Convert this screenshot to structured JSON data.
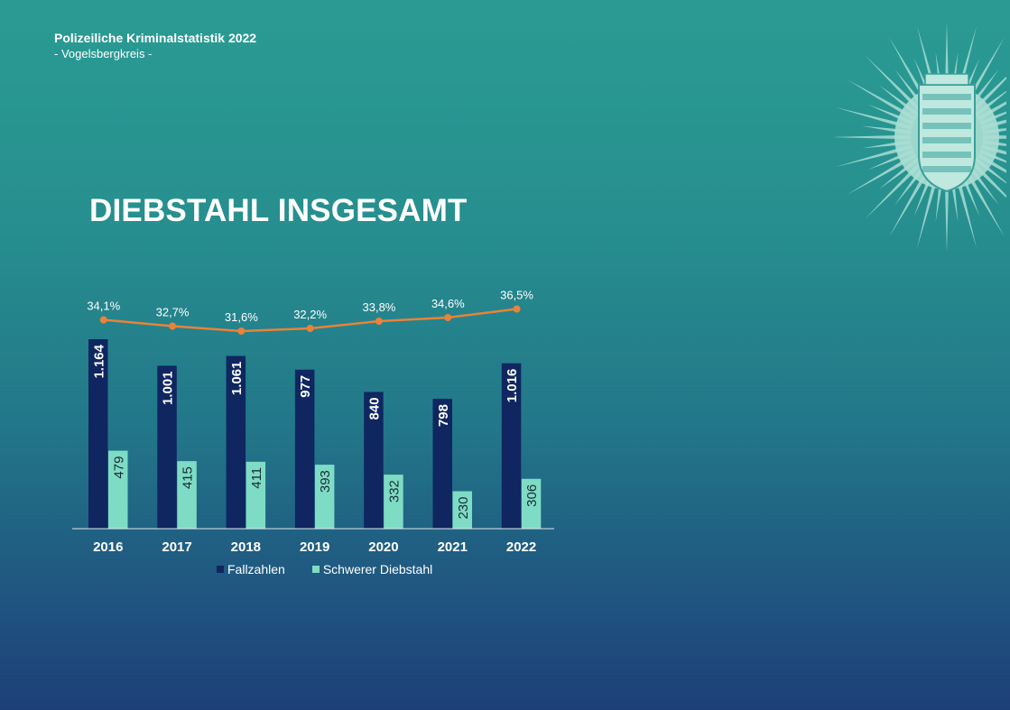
{
  "header": {
    "title": "Polizeiliche Kriminalstatistik 2022",
    "subtitle": "- Vogelsbergkreis -"
  },
  "page_title": "DIEBSTAHL INSGESAMT",
  "colors": {
    "fallzahlen": "#0f2660",
    "schwerer": "#7fdcc4",
    "line": "#e8833a",
    "axis": "#dfe8ee",
    "emblem": "#a9ded4"
  },
  "icons": {
    "emblem": "hessen-police-star-emblem-icon"
  },
  "chart_data": {
    "type": "bar",
    "categories": [
      "2016",
      "2017",
      "2018",
      "2019",
      "2020",
      "2021",
      "2022"
    ],
    "series": [
      {
        "name": "Fallzahlen",
        "values": [
          1164,
          1001,
          1061,
          977,
          840,
          798,
          1016
        ],
        "labels": [
          "1.164",
          "1.001",
          "1.061",
          "977",
          "840",
          "798",
          "1.016"
        ]
      },
      {
        "name": "Schwerer Diebstahl",
        "values": [
          479,
          415,
          411,
          393,
          332,
          230,
          306
        ],
        "labels": [
          "479",
          "415",
          "411",
          "393",
          "332",
          "230",
          "306"
        ]
      }
    ],
    "line_series": {
      "values": [
        34.1,
        32.7,
        31.6,
        32.2,
        33.8,
        34.6,
        36.5
      ],
      "labels": [
        "34,1%",
        "32,7%",
        "31,6%",
        "32,2%",
        "33,8%",
        "34,6%",
        "36,5%"
      ]
    },
    "legend": [
      "Fallzahlen",
      "Schwerer Diebstahl"
    ],
    "legend_position": "bottom",
    "grid": false
  }
}
